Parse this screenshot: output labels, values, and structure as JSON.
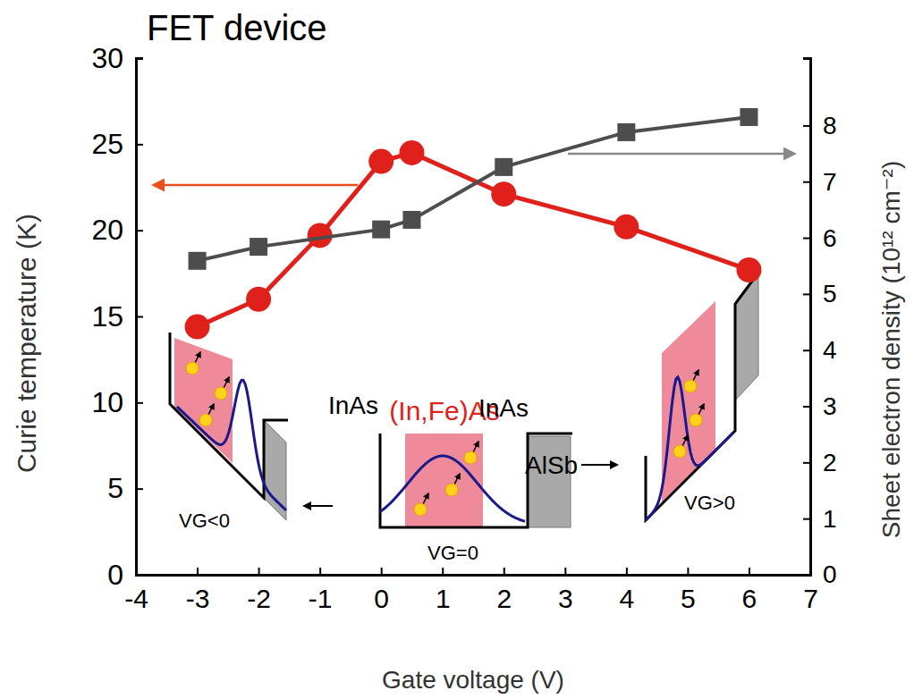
{
  "chart_data": {
    "type": "line",
    "title": "FET device",
    "x_label": "Gate voltage (V)",
    "y_label": "Curie temperature (K)",
    "y2_label": "Sheet electron density (10¹² cm⁻²)",
    "xlim": [
      -4,
      7
    ],
    "xticks": [
      -4,
      -3,
      -2,
      -1,
      0,
      1,
      2,
      3,
      4,
      5,
      6,
      7
    ],
    "ylim": [
      0,
      30
    ],
    "yticks": [
      0,
      5,
      10,
      15,
      20,
      25,
      30
    ],
    "y2lim": [
      0,
      9.2
    ],
    "y2ticks": [
      0,
      1,
      2,
      3,
      4,
      5,
      6,
      7,
      8
    ],
    "grid": false,
    "series": [
      {
        "color": "#e0201b",
        "marker": "circle",
        "line_style": "solid",
        "x": [
          -3,
          -2,
          -1,
          0,
          0.5,
          2,
          4,
          6
        ],
        "values": [
          14.4,
          16.0,
          19.7,
          24.0,
          24.5,
          22.1,
          20.2,
          17.7
        ]
      },
      {
        "color": "#4d4d4d",
        "marker": "square",
        "line_style": "solid",
        "axis": "y2",
        "x": [
          -3,
          -2,
          0,
          0.5,
          2,
          4,
          6
        ],
        "values": [
          5.59,
          5.84,
          6.15,
          6.32,
          7.26,
          7.88,
          8.15
        ]
      }
    ],
    "annotations": [
      {
        "text": "(In,Fe)As"
      },
      {
        "text": "InAs"
      },
      {
        "text": "InAs"
      },
      {
        "text": "AlSb"
      },
      {
        "text": "VG<0"
      },
      {
        "text": "VG=0"
      },
      {
        "text": "VG>0"
      }
    ]
  }
}
